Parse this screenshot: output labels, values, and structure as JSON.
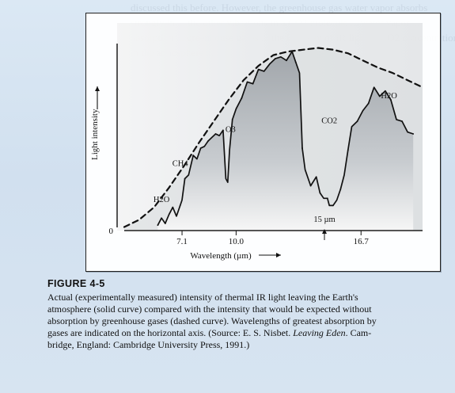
{
  "figure": {
    "caption_title": "FIGURE 4-5",
    "caption_lines": [
      "Actual (experimentally measured) intensity of thermal IR light leaving the Earth's",
      "atmosphere (solid curve) compared with the intensity that would be expected without",
      "absorption by greenhouse gases (dashed curve). Wavelengths of greatest absorption by",
      "gases are indicated on the horizontal axis. (Source: E. S. Nisbet. ",
      "Leaving Eden",
      ". Cam-",
      "bridge, England: Cambridge University Press, 1991.)"
    ]
  },
  "background_text": "discussed this before. However, the greenhouse gas water vapor absorbs strongly in ... the other vibrations in a CO2 molecule ... water vapor ... absorption ... greenhouse gases ... the intensity of IR light ... CO2 concentration in the atmosphere ...",
  "chart_data": {
    "type": "line",
    "title": "",
    "xlabel": "Wavelength (µm)",
    "ylabel": "Light intensity",
    "ticks": [
      "7.1",
      "10.0",
      "16.7"
    ],
    "tick_values": [
      7.1,
      10.0,
      16.7
    ],
    "origin_label": "0",
    "arrow_label": "15 µm",
    "xlim": [
      4,
      20
    ],
    "ylim": [
      0,
      1
    ],
    "annotations": [
      {
        "text": "H2O",
        "x": 6.0,
        "y": 0.16
      },
      {
        "text": "CH4",
        "x": 7.0,
        "y": 0.36
      },
      {
        "text": "O3",
        "x": 9.7,
        "y": 0.55
      },
      {
        "text": "CO2",
        "x": 15.0,
        "y": 0.6
      },
      {
        "text": "H2O",
        "x": 18.2,
        "y": 0.74
      }
    ],
    "series": [
      {
        "name": "Actual intensity",
        "style": "solid",
        "x": [
          5.8,
          6.0,
          6.2,
          6.4,
          6.6,
          6.8,
          7.0,
          7.1,
          7.25,
          7.45,
          7.7,
          7.9,
          8.1,
          8.3,
          8.5,
          8.7,
          8.9,
          9.1,
          9.3,
          9.45,
          9.55,
          9.65,
          9.8,
          10.0,
          10.3,
          10.6,
          10.9,
          11.2,
          11.5,
          11.8,
          12.1,
          12.4,
          12.7,
          13.0,
          13.2,
          13.4,
          13.55,
          13.7,
          14.0,
          14.3,
          14.5,
          14.7,
          14.9,
          15.0,
          15.2,
          15.4,
          15.6,
          15.8,
          16.0,
          16.2,
          16.5,
          16.8,
          17.1,
          17.4,
          17.7,
          18.0,
          18.3,
          18.6,
          18.9,
          19.2,
          19.5
        ],
        "y": [
          0.03,
          0.07,
          0.04,
          0.09,
          0.13,
          0.08,
          0.14,
          0.17,
          0.29,
          0.31,
          0.42,
          0.4,
          0.46,
          0.47,
          0.5,
          0.52,
          0.54,
          0.53,
          0.56,
          0.29,
          0.27,
          0.45,
          0.62,
          0.68,
          0.74,
          0.83,
          0.82,
          0.9,
          0.89,
          0.93,
          0.96,
          0.97,
          0.95,
          1.0,
          0.94,
          0.88,
          0.46,
          0.34,
          0.25,
          0.3,
          0.21,
          0.18,
          0.18,
          0.14,
          0.14,
          0.17,
          0.23,
          0.31,
          0.45,
          0.58,
          0.61,
          0.67,
          0.71,
          0.8,
          0.75,
          0.78,
          0.73,
          0.62,
          0.61,
          0.55,
          0.54
        ]
      },
      {
        "name": "Expected without absorption",
        "style": "dashed",
        "x": [
          4.0,
          4.8,
          5.6,
          6.4,
          7.2,
          8.0,
          8.8,
          9.6,
          10.4,
          11.2,
          12.0,
          12.8,
          13.6,
          14.4,
          15.2,
          16.0,
          16.8,
          17.6,
          18.4,
          19.2,
          20.0
        ],
        "y": [
          0.02,
          0.06,
          0.13,
          0.24,
          0.36,
          0.49,
          0.61,
          0.73,
          0.84,
          0.92,
          0.98,
          1.0,
          1.01,
          1.02,
          1.01,
          0.99,
          0.95,
          0.91,
          0.88,
          0.84,
          0.8
        ]
      }
    ],
    "colors": {
      "frame": "#1f1f1f",
      "fill": "#bfc4c9",
      "fill_dark": "#8c9095",
      "line": "#111111",
      "dashed": "#111111",
      "arrow": "#111111"
    },
    "legend": "none"
  }
}
